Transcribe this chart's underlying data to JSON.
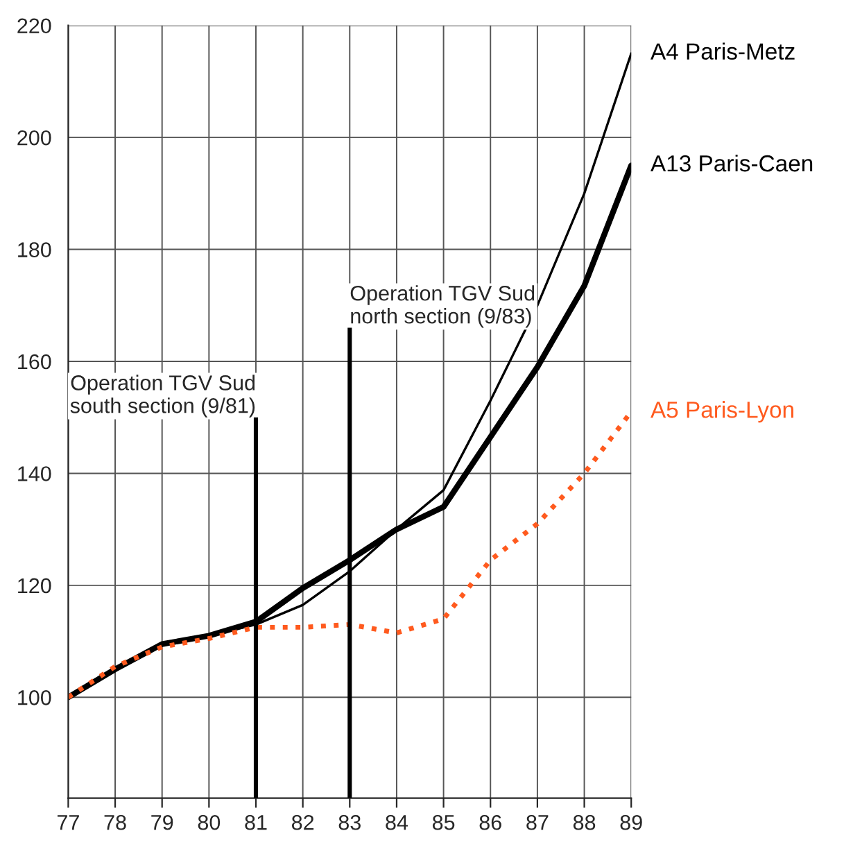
{
  "chart_data": {
    "type": "line",
    "x": [
      77,
      78,
      79,
      80,
      81,
      82,
      83,
      84,
      85,
      86,
      87,
      88,
      89
    ],
    "series": [
      {
        "name": "A4 Paris-Metz",
        "color": "#000000",
        "line_style": "solid",
        "values": [
          100,
          105,
          109.5,
          111,
          113,
          116.5,
          122.5,
          130,
          137,
          153,
          170,
          190,
          215
        ]
      },
      {
        "name": "A13 Paris-Caen",
        "color": "#000000",
        "line_style": "solid",
        "values": [
          100,
          105,
          109.5,
          111,
          113.5,
          119.5,
          124.5,
          130,
          134,
          146.5,
          159,
          173.5,
          195
        ]
      },
      {
        "name": "A5 Paris-Lyon",
        "color": "#ff5a1e",
        "line_style": "dotted",
        "values": [
          100,
          105.5,
          109,
          110.5,
          112.5,
          112.5,
          113,
          111.5,
          114,
          124.5,
          131,
          140,
          151
        ]
      }
    ],
    "xlim": [
      77,
      89
    ],
    "xticks": [
      77,
      78,
      79,
      80,
      81,
      82,
      83,
      84,
      85,
      86,
      87,
      88,
      89
    ],
    "ylim": [
      82,
      220
    ],
    "yticks": [
      100,
      120,
      140,
      160,
      180,
      200,
      220
    ],
    "ref_lines": [
      {
        "axis": "x",
        "value": 81,
        "label": "Operation TGV Sud\nsouth section (9/81)",
        "color": "#000000"
      },
      {
        "axis": "x",
        "value": 83,
        "label": "Operation TGV Sud\nnorth section (9/83)",
        "color": "#000000"
      }
    ],
    "grid": true,
    "legend": false,
    "marker": "none"
  }
}
